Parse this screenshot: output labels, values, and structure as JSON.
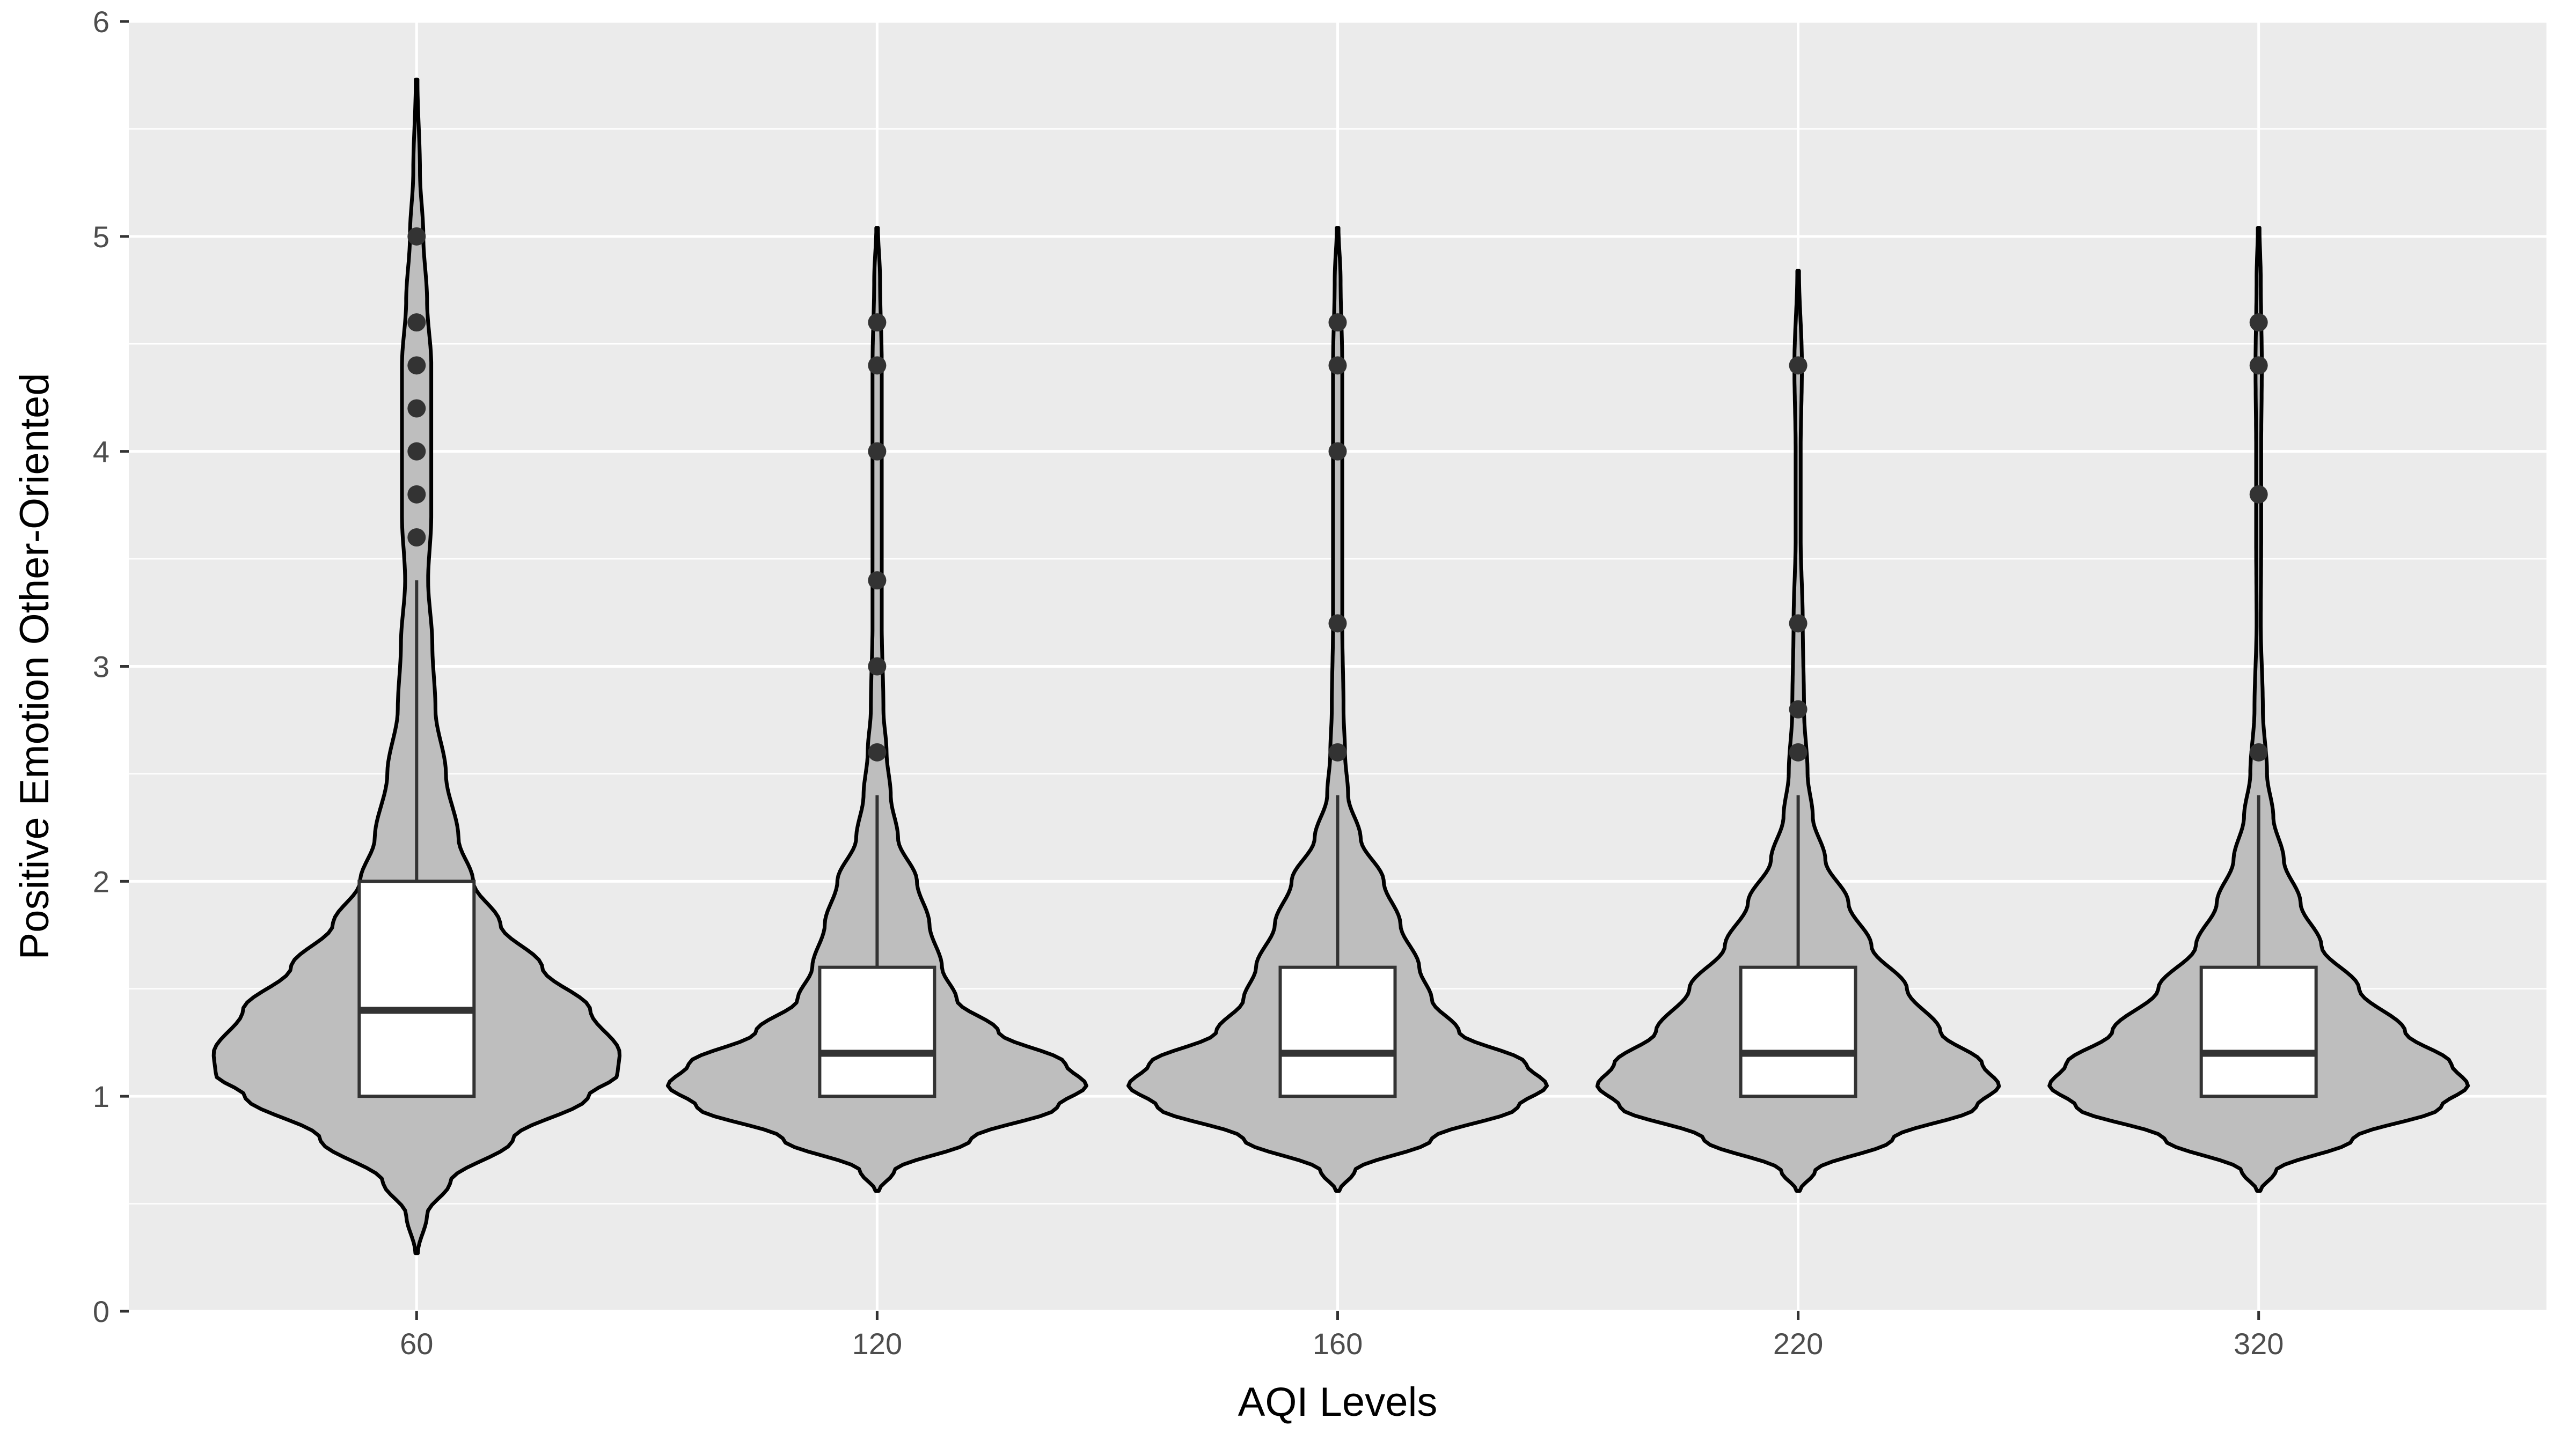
{
  "chart_data": {
    "type": "violin",
    "xlabel": "AQI Levels",
    "ylabel": "Positive Emotion Other-Oriented",
    "ylim": [
      0,
      6
    ],
    "y_ticks": [
      "0",
      "1",
      "2",
      "3",
      "4",
      "5",
      "6"
    ],
    "categories": [
      "60",
      "120",
      "160",
      "220",
      "320"
    ],
    "background": "#ebebeb",
    "grid": true,
    "violin_fill": "#bebebe",
    "groups": [
      {
        "category": "60",
        "box": {
          "q1": 1.0,
          "median": 1.4,
          "q3": 2.0,
          "whisker_low": 1.0,
          "whisker_high": 3.4
        },
        "outliers": [
          3.6,
          3.8,
          4.0,
          4.2,
          4.4,
          4.6,
          5.0
        ],
        "violin": {
          "ymin": 0.27,
          "ymax": 5.73,
          "profile": [
            [
              0.27,
              0.006
            ],
            [
              0.45,
              0.05
            ],
            [
              0.6,
              0.16
            ],
            [
              0.8,
              0.46
            ],
            [
              1.0,
              0.82
            ],
            [
              1.1,
              0.96
            ],
            [
              1.2,
              0.97
            ],
            [
              1.4,
              0.83
            ],
            [
              1.6,
              0.6
            ],
            [
              1.8,
              0.4
            ],
            [
              2.0,
              0.27
            ],
            [
              2.2,
              0.2
            ],
            [
              2.5,
              0.14
            ],
            [
              2.8,
              0.09
            ],
            [
              3.1,
              0.075
            ],
            [
              3.4,
              0.055
            ],
            [
              3.7,
              0.07
            ],
            [
              4.0,
              0.07
            ],
            [
              4.4,
              0.07
            ],
            [
              4.7,
              0.05
            ],
            [
              5.0,
              0.032
            ],
            [
              5.3,
              0.016
            ],
            [
              5.73,
              0.004
            ]
          ]
        }
      },
      {
        "category": "120",
        "box": {
          "q1": 1.0,
          "median": 1.2,
          "q3": 1.6,
          "whisker_low": 1.0,
          "whisker_high": 2.4
        },
        "outliers": [
          2.6,
          3.0,
          3.4,
          4.0,
          4.4,
          4.6
        ],
        "violin": {
          "ymin": 0.56,
          "ymax": 5.04,
          "profile": [
            [
              0.56,
              0.008
            ],
            [
              0.65,
              0.08
            ],
            [
              0.8,
              0.45
            ],
            [
              0.95,
              0.86
            ],
            [
              1.05,
              1.0
            ],
            [
              1.15,
              0.9
            ],
            [
              1.3,
              0.58
            ],
            [
              1.45,
              0.38
            ],
            [
              1.6,
              0.31
            ],
            [
              1.8,
              0.25
            ],
            [
              2.0,
              0.19
            ],
            [
              2.2,
              0.1
            ],
            [
              2.4,
              0.065
            ],
            [
              2.6,
              0.045
            ],
            [
              2.8,
              0.03
            ],
            [
              3.2,
              0.022
            ],
            [
              3.6,
              0.022
            ],
            [
              4.0,
              0.022
            ],
            [
              4.4,
              0.022
            ],
            [
              4.8,
              0.014
            ],
            [
              5.04,
              0.004
            ]
          ]
        }
      },
      {
        "category": "160",
        "box": {
          "q1": 1.0,
          "median": 1.2,
          "q3": 1.6,
          "whisker_low": 1.0,
          "whisker_high": 2.4
        },
        "outliers": [
          2.6,
          3.2,
          4.0,
          4.4,
          4.6
        ],
        "violin": {
          "ymin": 0.56,
          "ymax": 5.04,
          "profile": [
            [
              0.56,
              0.008
            ],
            [
              0.65,
              0.08
            ],
            [
              0.8,
              0.45
            ],
            [
              0.95,
              0.86
            ],
            [
              1.05,
              1.0
            ],
            [
              1.15,
              0.9
            ],
            [
              1.3,
              0.58
            ],
            [
              1.45,
              0.45
            ],
            [
              1.6,
              0.39
            ],
            [
              1.8,
              0.3
            ],
            [
              2.0,
              0.22
            ],
            [
              2.2,
              0.11
            ],
            [
              2.4,
              0.05
            ],
            [
              2.6,
              0.035
            ],
            [
              2.8,
              0.028
            ],
            [
              3.2,
              0.022
            ],
            [
              3.6,
              0.022
            ],
            [
              4.0,
              0.022
            ],
            [
              4.4,
              0.022
            ],
            [
              4.8,
              0.014
            ],
            [
              5.04,
              0.004
            ]
          ]
        }
      },
      {
        "category": "220",
        "box": {
          "q1": 1.0,
          "median": 1.2,
          "q3": 1.6,
          "whisker_low": 1.0,
          "whisker_high": 2.4
        },
        "outliers": [
          2.6,
          2.8,
          3.2,
          4.4
        ],
        "violin": {
          "ymin": 0.56,
          "ymax": 4.84,
          "profile": [
            [
              0.56,
              0.008
            ],
            [
              0.65,
              0.08
            ],
            [
              0.8,
              0.45
            ],
            [
              0.95,
              0.85
            ],
            [
              1.05,
              0.96
            ],
            [
              1.15,
              0.88
            ],
            [
              1.3,
              0.68
            ],
            [
              1.5,
              0.52
            ],
            [
              1.7,
              0.35
            ],
            [
              1.9,
              0.24
            ],
            [
              2.1,
              0.13
            ],
            [
              2.3,
              0.07
            ],
            [
              2.5,
              0.045
            ],
            [
              2.8,
              0.028
            ],
            [
              3.2,
              0.022
            ],
            [
              3.6,
              0.012
            ],
            [
              4.0,
              0.012
            ],
            [
              4.4,
              0.018
            ],
            [
              4.84,
              0.004
            ]
          ]
        }
      },
      {
        "category": "320",
        "box": {
          "q1": 1.0,
          "median": 1.2,
          "q3": 1.6,
          "whisker_low": 1.0,
          "whisker_high": 2.4
        },
        "outliers": [
          2.6,
          3.8,
          4.4,
          4.6
        ],
        "violin": {
          "ymin": 0.56,
          "ymax": 5.04,
          "profile": [
            [
              0.56,
              0.008
            ],
            [
              0.65,
              0.08
            ],
            [
              0.8,
              0.45
            ],
            [
              0.95,
              0.87
            ],
            [
              1.05,
              1.0
            ],
            [
              1.15,
              0.92
            ],
            [
              1.3,
              0.7
            ],
            [
              1.5,
              0.48
            ],
            [
              1.7,
              0.3
            ],
            [
              1.9,
              0.2
            ],
            [
              2.1,
              0.12
            ],
            [
              2.3,
              0.07
            ],
            [
              2.5,
              0.04
            ],
            [
              2.8,
              0.02
            ],
            [
              3.2,
              0.01
            ],
            [
              3.6,
              0.012
            ],
            [
              4.0,
              0.012
            ],
            [
              4.4,
              0.015
            ],
            [
              4.8,
              0.01
            ],
            [
              5.04,
              0.004
            ]
          ]
        }
      }
    ]
  }
}
